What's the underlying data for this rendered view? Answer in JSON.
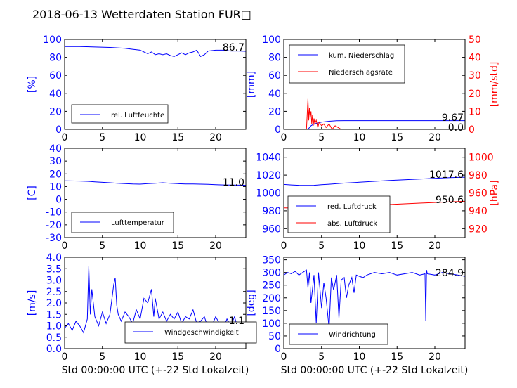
{
  "title": "2018-06-13 Wetterdaten Station FUR□",
  "xlabel": "Std 00:00:00 UTC (+-22 Std Lokalzeit)",
  "colors": {
    "primary": "#0000ff",
    "secondary": "#ff0000",
    "text": "#000000"
  },
  "chart_data": [
    {
      "type": "line",
      "ylabel": "[%]",
      "xlim": [
        0,
        24
      ],
      "xticks": [
        0,
        5,
        10,
        15,
        20
      ],
      "ylim": [
        0,
        100
      ],
      "yticks": [
        0,
        20,
        40,
        60,
        80,
        100
      ],
      "legend": "lower-left",
      "current_value": "86.7",
      "series": [
        {
          "name": "rel. Luftfeuchte",
          "color": "#0000ff",
          "x": [
            0,
            2,
            4,
            6,
            8,
            9,
            10,
            10.5,
            11,
            11.5,
            12,
            12.5,
            13,
            13.5,
            14,
            14.5,
            15,
            15.5,
            16,
            16.5,
            17,
            17.5,
            18,
            18.5,
            19,
            20,
            21,
            22,
            23,
            24
          ],
          "y": [
            92,
            92,
            91.5,
            91,
            90,
            89,
            88,
            86,
            84,
            86,
            83,
            84,
            83,
            84,
            82,
            81,
            83,
            85,
            83,
            85,
            86,
            88,
            81,
            83,
            87,
            88,
            88,
            87,
            87,
            86.7
          ]
        }
      ]
    },
    {
      "type": "line",
      "ylabel": "[mm]",
      "ylabel_right": "[mm/std]",
      "xlim": [
        0,
        24
      ],
      "xticks": [
        0,
        5,
        10,
        15,
        20
      ],
      "ylim": [
        0,
        100
      ],
      "yticks": [
        0,
        20,
        40,
        60,
        80,
        100
      ],
      "ylim_right": [
        0,
        50
      ],
      "yticks_right": [
        0,
        10,
        20,
        30,
        40,
        50
      ],
      "legend": "top-left",
      "current_value": "9.67",
      "current_value_right": "0.0",
      "series": [
        {
          "name": "kum. Niederschlag",
          "color": "#0000ff",
          "axis": "left",
          "x": [
            0,
            3.2,
            3.4,
            3.6,
            4,
            4.5,
            5,
            6,
            7,
            8,
            10,
            15,
            20,
            24
          ],
          "y": [
            0,
            0,
            2,
            4,
            6,
            7,
            8,
            9,
            9.5,
            9.67,
            9.67,
            9.67,
            9.67,
            9.67
          ]
        },
        {
          "name": "Niederschlagsrate",
          "color": "#ff0000",
          "axis": "right",
          "x": [
            0,
            3.0,
            3.2,
            3.3,
            3.4,
            3.5,
            3.6,
            3.7,
            3.8,
            3.9,
            4.0,
            4.1,
            4.3,
            4.5,
            4.7,
            5.0,
            5.3,
            5.6,
            6.0,
            6.4,
            6.8,
            7.2,
            7.6,
            8,
            10,
            24
          ],
          "y": [
            0,
            0,
            17,
            5,
            12,
            7,
            10,
            3,
            8,
            2,
            6,
            3,
            5,
            1,
            4,
            2,
            3,
            1,
            3,
            0,
            2,
            1,
            0,
            0,
            0,
            0
          ]
        }
      ]
    },
    {
      "type": "line",
      "ylabel": "[C]",
      "xlim": [
        0,
        24
      ],
      "xticks": [
        0,
        5,
        10,
        15,
        20
      ],
      "ylim": [
        -30,
        40
      ],
      "yticks": [
        -30,
        -20,
        -10,
        0,
        10,
        20,
        30,
        40
      ],
      "legend": "lower-left",
      "current_value": "11.0",
      "series": [
        {
          "name": "Lufttemperatur",
          "color": "#0000ff",
          "x": [
            0,
            2,
            3,
            4,
            5,
            6,
            7,
            8,
            9,
            10,
            11,
            12,
            13,
            14,
            15,
            16,
            17,
            18,
            19,
            20,
            21,
            22,
            23,
            24
          ],
          "y": [
            14.5,
            14.3,
            14.1,
            13.7,
            13.3,
            13.0,
            12.6,
            12.3,
            12.0,
            11.9,
            12.3,
            12.6,
            13.0,
            12.6,
            12.3,
            12.0,
            12.0,
            11.9,
            11.7,
            11.5,
            11.3,
            11.2,
            11.1,
            11.0
          ]
        }
      ]
    },
    {
      "type": "line",
      "ylabel_right": "[hPa]",
      "xlim": [
        0,
        24
      ],
      "xticks": [
        0,
        5,
        10,
        15,
        20
      ],
      "ylim": [
        950,
        1050
      ],
      "yticks": [
        960,
        980,
        1000,
        1020,
        1040
      ],
      "ylim_right": [
        910,
        1010
      ],
      "yticks_right": [
        920,
        940,
        960,
        980,
        1000
      ],
      "legend": "lower-left",
      "current_value": "1017.6",
      "current_value_right": "950.6",
      "series": [
        {
          "name": "red. Luftdruck",
          "color": "#0000ff",
          "axis": "left",
          "x": [
            0,
            1,
            2,
            3,
            4,
            5,
            6,
            8,
            10,
            12,
            14,
            16,
            18,
            20,
            22,
            24
          ],
          "y": [
            1009.5,
            1009.0,
            1008.6,
            1008.4,
            1008.6,
            1009.2,
            1009.8,
            1011.0,
            1012.0,
            1013.0,
            1014.0,
            1014.8,
            1015.6,
            1016.4,
            1017.2,
            1017.6
          ]
        },
        {
          "name": "abs. Luftdruck",
          "color": "#ff0000",
          "axis": "right",
          "x": [
            0,
            2,
            3,
            4,
            6,
            8,
            10,
            12,
            14,
            16,
            18,
            20,
            22,
            24
          ],
          "y": [
            943.2,
            943.0,
            943.0,
            943.2,
            943.8,
            944.6,
            945.4,
            946.2,
            947.0,
            947.8,
            948.6,
            949.3,
            950.0,
            950.6
          ]
        }
      ]
    },
    {
      "type": "line",
      "ylabel": "[m/s]",
      "xlim": [
        0,
        24
      ],
      "xticks": [
        0,
        5,
        10,
        15,
        20
      ],
      "ylim": [
        0,
        4
      ],
      "yticks": [
        0.0,
        0.5,
        1.0,
        1.5,
        2.0,
        2.5,
        3.0,
        3.5,
        4.0
      ],
      "legend": "lower-center",
      "current_value": "1.1",
      "series": [
        {
          "name": "Windgeschwindigkeit",
          "color": "#0000ff",
          "x": [
            0,
            0.5,
            1,
            1.5,
            2,
            2.5,
            3,
            3.2,
            3.4,
            3.6,
            4,
            4.5,
            5,
            5.5,
            6,
            6.5,
            6.7,
            6.9,
            7.1,
            7.5,
            8,
            8.5,
            9,
            9.5,
            10,
            10.5,
            11,
            11.5,
            11.8,
            12,
            12.5,
            13,
            13.5,
            14,
            14.5,
            15,
            15.5,
            16,
            16.5,
            17,
            17.5,
            18,
            18.5,
            19,
            19.2,
            19.5,
            20,
            20.5,
            21,
            21.5,
            22,
            22.5,
            23,
            23.5,
            24
          ],
          "y": [
            0.9,
            1.1,
            0.8,
            1.2,
            1.0,
            0.7,
            1.3,
            3.6,
            1.5,
            2.6,
            1.4,
            1.0,
            1.6,
            1.1,
            1.5,
            2.8,
            3.1,
            1.9,
            1.5,
            1.2,
            1.6,
            1.4,
            1.1,
            1.7,
            1.3,
            2.2,
            2.0,
            2.6,
            1.4,
            2.2,
            1.3,
            1.6,
            1.2,
            1.5,
            1.3,
            1.6,
            1.1,
            1.4,
            1.3,
            1.7,
            1.1,
            1.2,
            1.4,
            0.9,
            0.3,
            1.0,
            1.4,
            1.1,
            0.9,
            1.3,
            1.0,
            1.4,
            0.8,
            1.0,
            1.1
          ]
        }
      ]
    },
    {
      "type": "line",
      "ylabel": "[deg]",
      "xlim": [
        0,
        24
      ],
      "xticks": [
        0,
        5,
        10,
        15,
        20
      ],
      "ylim": [
        0,
        360
      ],
      "yticks": [
        0,
        50,
        100,
        150,
        200,
        250,
        300,
        350
      ],
      "legend": "lower-left",
      "current_value": "284.9",
      "series": [
        {
          "name": "Windrichtung",
          "color": "#0000ff",
          "x": [
            0,
            0.5,
            1,
            1.5,
            2,
            2.5,
            3,
            3.2,
            3.4,
            3.6,
            4,
            4.3,
            4.6,
            5,
            5.3,
            5.6,
            6,
            6.3,
            6.6,
            7,
            7.3,
            7.6,
            8,
            8.3,
            8.6,
            9,
            9.3,
            9.6,
            10,
            10.5,
            11,
            12,
            13,
            14,
            15,
            16,
            17,
            18,
            18.7,
            18.8,
            18.9,
            19,
            20,
            21,
            22,
            23,
            24
          ],
          "y": [
            290,
            300,
            295,
            305,
            290,
            300,
            310,
            240,
            300,
            180,
            290,
            100,
            300,
            160,
            260,
            200,
            80,
            280,
            230,
            290,
            120,
            270,
            280,
            200,
            250,
            280,
            220,
            290,
            285,
            280,
            290,
            300,
            295,
            300,
            290,
            295,
            300,
            290,
            295,
            110,
            310,
            295,
            290,
            300,
            295,
            290,
            284.9
          ]
        }
      ]
    }
  ]
}
